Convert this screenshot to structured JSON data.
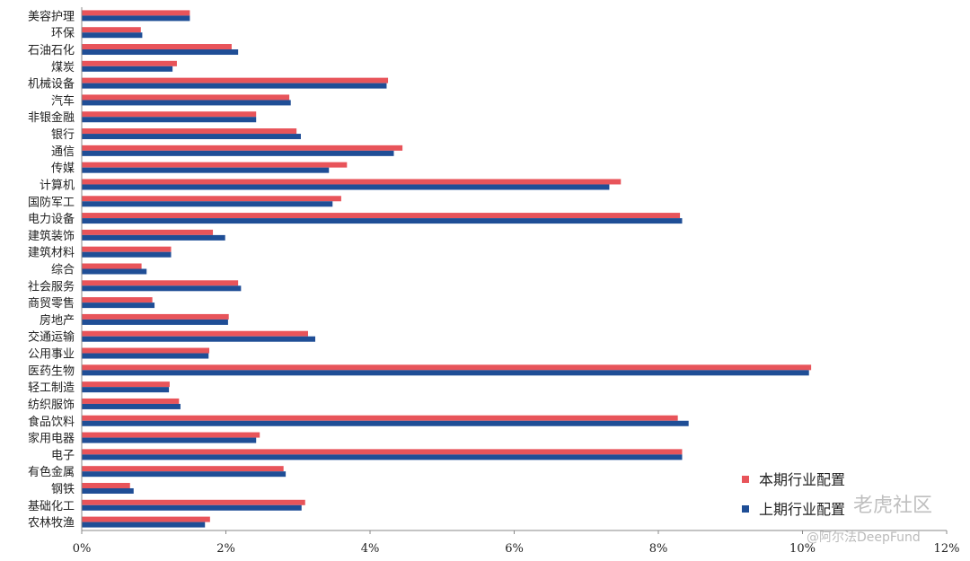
{
  "chart_data": {
    "type": "bar",
    "orientation": "horizontal",
    "categories": [
      "美容护理",
      "环保",
      "石油石化",
      "煤炭",
      "机械设备",
      "汽车",
      "非银金融",
      "银行",
      "通信",
      "传媒",
      "计算机",
      "国防军工",
      "电力设备",
      "建筑装饰",
      "建筑材料",
      "综合",
      "社会服务",
      "商贸零售",
      "房地产",
      "交通运输",
      "公用事业",
      "医药生物",
      "轻工制造",
      "纺织服饰",
      "食品饮料",
      "家用电器",
      "电子",
      "有色金属",
      "钢铁",
      "基础化工",
      "农林牧渔"
    ],
    "series": [
      {
        "name": "本期行业配置",
        "color": "#e8545a",
        "values": [
          1.5,
          0.82,
          2.08,
          1.32,
          4.25,
          2.88,
          2.42,
          2.98,
          4.45,
          3.68,
          7.48,
          3.6,
          8.3,
          1.82,
          1.24,
          0.83,
          2.17,
          0.98,
          2.04,
          3.14,
          1.77,
          10.12,
          1.22,
          1.35,
          8.27,
          2.47,
          8.33,
          2.8,
          0.67,
          3.1,
          1.78
        ]
      },
      {
        "name": "上期行业配置",
        "color": "#1f4e96",
        "values": [
          1.5,
          0.84,
          2.17,
          1.26,
          4.23,
          2.9,
          2.42,
          3.04,
          4.33,
          3.43,
          7.32,
          3.48,
          8.33,
          1.99,
          1.24,
          0.9,
          2.21,
          1.01,
          2.03,
          3.24,
          1.76,
          10.09,
          1.21,
          1.37,
          8.42,
          2.42,
          8.33,
          2.83,
          0.72,
          3.05,
          1.71
        ]
      }
    ],
    "xlim": [
      0,
      12
    ],
    "xticks": [
      "0%",
      "2%",
      "4%",
      "6%",
      "8%",
      "10%",
      "12%"
    ],
    "legend_position": "bottom-right"
  },
  "watermark": {
    "site": "老虎社区",
    "author": "@阿尔法DeepFund"
  }
}
